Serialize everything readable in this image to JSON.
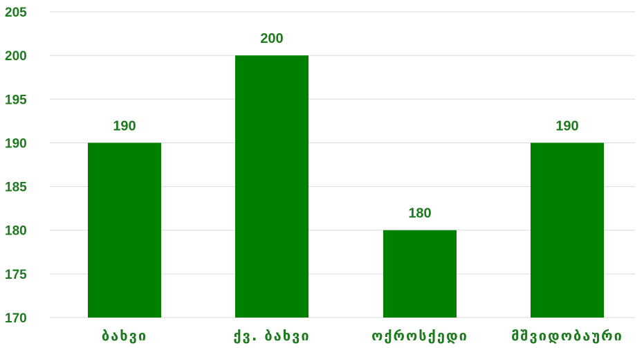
{
  "chart_data": {
    "type": "bar",
    "categories": [
      "ბახვი",
      "ქვ. ბახვი",
      "ოქროსქედი",
      "მშვიდობაური"
    ],
    "values": [
      190,
      200,
      180,
      190
    ],
    "data_labels": [
      "190",
      "200",
      "180",
      "190"
    ],
    "y_ticks": [
      "170",
      "175",
      "180",
      "185",
      "190",
      "195",
      "200",
      "205"
    ],
    "ylim": [
      170,
      205
    ],
    "grid": true,
    "bar_color": "#008000",
    "text_color": "#1e7a1e",
    "grid_color": "#d9d9d9"
  }
}
